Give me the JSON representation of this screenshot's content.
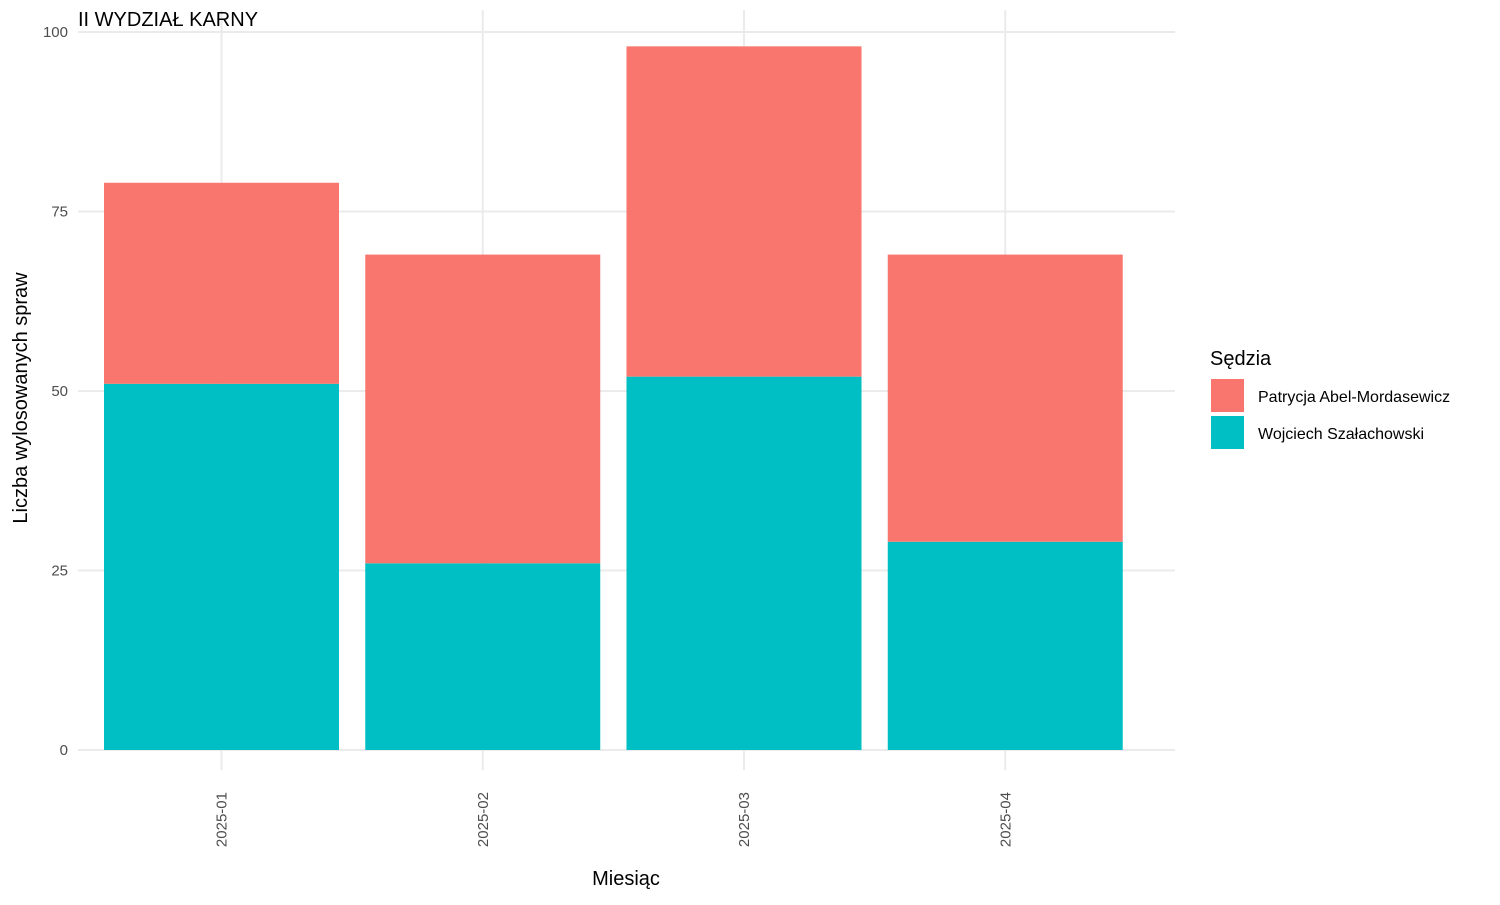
{
  "chart_data": {
    "type": "bar",
    "stacked": true,
    "title": "II WYDZIAŁ KARNY",
    "xlabel": "Miesiąc",
    "ylabel": "Liczba wylosowanych spraw",
    "categories": [
      "2025-01",
      "2025-02",
      "2025-03",
      "2025-04"
    ],
    "series": [
      {
        "name": "Wojciech Szałachowski",
        "values": [
          51,
          26,
          52,
          29
        ],
        "color": "#00BFC4"
      },
      {
        "name": "Patrycja Abel-Mordasewicz",
        "values": [
          28,
          43,
          46,
          40
        ],
        "color": "#F8766D"
      }
    ],
    "ylim": [
      0,
      100
    ],
    "yticks": [
      0,
      25,
      50,
      75,
      100
    ],
    "grid": true,
    "legend": {
      "title": "Sędzia",
      "position": "right",
      "items": [
        "Patrycja Abel-Mordasewicz",
        "Wojciech Szałachowski"
      ]
    }
  }
}
